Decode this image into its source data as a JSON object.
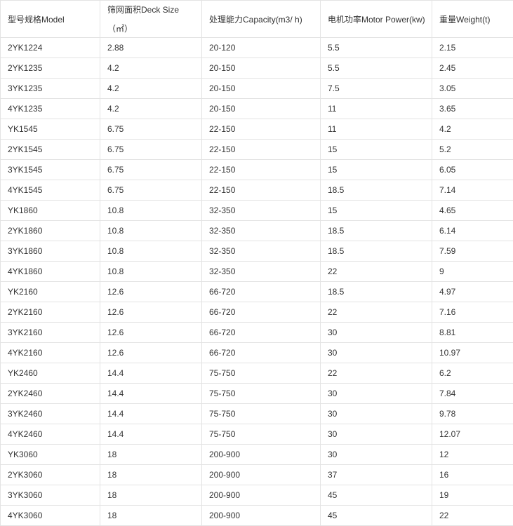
{
  "headers": [
    "型号规格Model",
    "筛网面积Deck Size",
    "（㎡）",
    "处理能力Capacity(m3/ h)",
    "电机功率Motor Power(kw)",
    "重量Weight(t)"
  ],
  "rows": [
    [
      "2YK1224",
      "2.88",
      "20-120",
      "5.5",
      "2.15"
    ],
    [
      "2YK1235",
      "4.2",
      "20-150",
      "5.5",
      "2.45"
    ],
    [
      "3YK1235",
      "4.2",
      "20-150",
      "7.5",
      "3.05"
    ],
    [
      "4YK1235",
      "4.2",
      "20-150",
      "11",
      "3.65"
    ],
    [
      "YK1545",
      "6.75",
      "22-150",
      "11",
      "4.2"
    ],
    [
      "2YK1545",
      "6.75",
      "22-150",
      "15",
      "5.2"
    ],
    [
      "3YK1545",
      "6.75",
      "22-150",
      "15",
      "6.05"
    ],
    [
      "4YK1545",
      "6.75",
      "22-150",
      "18.5",
      "7.14"
    ],
    [
      "YK1860",
      "10.8",
      "32-350",
      "15",
      "4.65"
    ],
    [
      "2YK1860",
      "10.8",
      "32-350",
      "18.5",
      "6.14"
    ],
    [
      "3YK1860",
      "10.8",
      "32-350",
      "18.5",
      "7.59"
    ],
    [
      "4YK1860",
      "10.8",
      "32-350",
      "22",
      "9"
    ],
    [
      "YK2160",
      "12.6",
      "66-720",
      "18.5",
      "4.97"
    ],
    [
      "2YK2160",
      "12.6",
      "66-720",
      "22",
      "7.16"
    ],
    [
      "3YK2160",
      "12.6",
      "66-720",
      "30",
      "8.81"
    ],
    [
      "4YK2160",
      "12.6",
      "66-720",
      "30",
      "10.97"
    ],
    [
      "YK2460",
      "14.4",
      "75-750",
      "22",
      "6.2"
    ],
    [
      "2YK2460",
      "14.4",
      "75-750",
      "30",
      "7.84"
    ],
    [
      "3YK2460",
      "14.4",
      "75-750",
      "30",
      "9.78"
    ],
    [
      "4YK2460",
      "14.4",
      "75-750",
      "30",
      "12.07"
    ],
    [
      "YK3060",
      "18",
      "200-900",
      "30",
      "12"
    ],
    [
      "2YK3060",
      "18",
      "200-900",
      "37",
      "16"
    ],
    [
      "3YK3060",
      "18",
      "200-900",
      "45",
      "19"
    ],
    [
      "4YK3060",
      "18",
      "200-900",
      "45",
      "22"
    ]
  ]
}
